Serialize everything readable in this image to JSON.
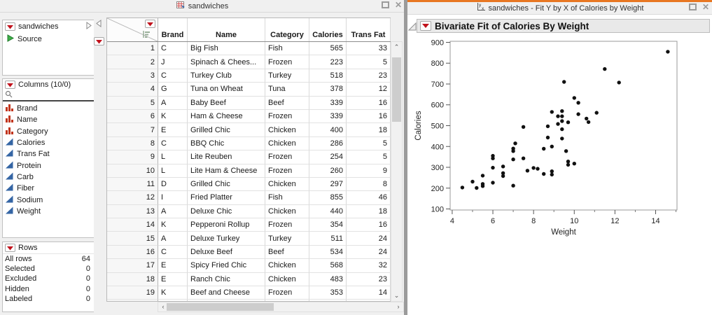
{
  "left_window": {
    "title": "sandwiches",
    "table_panel": {
      "name": "sandwiches",
      "source": "Source"
    },
    "columns_panel": {
      "title": "Columns (10/0)",
      "items": [
        {
          "label": "Brand",
          "type": "nominal"
        },
        {
          "label": "Name",
          "type": "nominal"
        },
        {
          "label": "Category",
          "type": "nominal"
        },
        {
          "label": "Calories",
          "type": "continuous"
        },
        {
          "label": "Trans Fat",
          "type": "continuous"
        },
        {
          "label": "Protein",
          "type": "continuous"
        },
        {
          "label": "Carb",
          "type": "continuous"
        },
        {
          "label": "Fiber",
          "type": "continuous"
        },
        {
          "label": "Sodium",
          "type": "continuous"
        },
        {
          "label": "Weight",
          "type": "continuous"
        }
      ]
    },
    "rows_panel": {
      "title": "Rows",
      "stats": [
        {
          "label": "All rows",
          "value": "64"
        },
        {
          "label": "Selected",
          "value": "0"
        },
        {
          "label": "Excluded",
          "value": "0"
        },
        {
          "label": "Hidden",
          "value": "0"
        },
        {
          "label": "Labeled",
          "value": "0"
        }
      ]
    },
    "table": {
      "headers": [
        "Brand",
        "Name",
        "Category",
        "Calories",
        "Trans Fat"
      ],
      "rows": [
        [
          "1",
          "C",
          "Big Fish",
          "Fish",
          "565",
          "33"
        ],
        [
          "2",
          "J",
          "Spinach & Chees...",
          "Frozen",
          "223",
          "5"
        ],
        [
          "3",
          "C",
          "Turkey Club",
          "Turkey",
          "518",
          "23"
        ],
        [
          "4",
          "G",
          "Tuna on Wheat",
          "Tuna",
          "378",
          "12"
        ],
        [
          "5",
          "A",
          "Baby Beef",
          "Beef",
          "339",
          "16"
        ],
        [
          "6",
          "K",
          "Ham & Cheese",
          "Frozen",
          "339",
          "16"
        ],
        [
          "7",
          "E",
          "Grilled Chic",
          "Chicken",
          "400",
          "18"
        ],
        [
          "8",
          "C",
          "BBQ Chic",
          "Chicken",
          "286",
          "5"
        ],
        [
          "9",
          "L",
          "Lite Reuben",
          "Frozen",
          "254",
          "5"
        ],
        [
          "10",
          "L",
          "Lite Ham & Cheese",
          "Frozen",
          "260",
          "9"
        ],
        [
          "11",
          "D",
          "Grilled Chic",
          "Chicken",
          "297",
          "8"
        ],
        [
          "12",
          "I",
          "Fried Platter",
          "Fish",
          "855",
          "46"
        ],
        [
          "13",
          "A",
          "Deluxe Chic",
          "Chicken",
          "440",
          "18"
        ],
        [
          "14",
          "K",
          "Pepperoni Rollup",
          "Frozen",
          "354",
          "16"
        ],
        [
          "15",
          "A",
          "Deluxe Turkey",
          "Turkey",
          "511",
          "24"
        ],
        [
          "16",
          "C",
          "Deluxe Beef",
          "Beef",
          "534",
          "24"
        ],
        [
          "17",
          "E",
          "Spicy Fried Chic",
          "Chicken",
          "568",
          "32"
        ],
        [
          "18",
          "E",
          "Ranch Chic",
          "Chicken",
          "483",
          "23"
        ],
        [
          "19",
          "K",
          "Beef and Cheese",
          "Frozen",
          "353",
          "14"
        ]
      ]
    }
  },
  "right_window": {
    "title": "sandwiches - Fit Y by X of Calories by Weight",
    "report_title": "Bivariate Fit of Calories By Weight"
  },
  "chart_data": {
    "type": "scatter",
    "title": "Bivariate Fit of Calories By Weight",
    "xlabel": "Weight",
    "ylabel": "Calories",
    "xlim": [
      4,
      15
    ],
    "ylim": [
      100,
      900
    ],
    "x_ticks": [
      4,
      6,
      8,
      10,
      12,
      14
    ],
    "x_minor_ticks": [
      5,
      7,
      9,
      11,
      13,
      15
    ],
    "y_ticks": [
      100,
      200,
      300,
      400,
      500,
      600,
      700,
      800,
      900
    ],
    "grid": false,
    "marker_color": "#111111",
    "points": [
      [
        4.5,
        203
      ],
      [
        5.0,
        231
      ],
      [
        5.2,
        201
      ],
      [
        5.5,
        260
      ],
      [
        5.5,
        220
      ],
      [
        5.5,
        210
      ],
      [
        6.0,
        355
      ],
      [
        6.0,
        343
      ],
      [
        6.0,
        298
      ],
      [
        6.0,
        226
      ],
      [
        6.5,
        304
      ],
      [
        6.5,
        272
      ],
      [
        6.5,
        258
      ],
      [
        7.0,
        212
      ],
      [
        7.0,
        390
      ],
      [
        7.0,
        378
      ],
      [
        7.0,
        338
      ],
      [
        7.1,
        415
      ],
      [
        7.5,
        494
      ],
      [
        7.5,
        343
      ],
      [
        7.7,
        284
      ],
      [
        8.0,
        297
      ],
      [
        8.2,
        293
      ],
      [
        8.5,
        268
      ],
      [
        8.5,
        389
      ],
      [
        8.7,
        497
      ],
      [
        8.7,
        443
      ],
      [
        8.9,
        281
      ],
      [
        8.9,
        265
      ],
      [
        8.9,
        400
      ],
      [
        8.9,
        566
      ],
      [
        9.2,
        508
      ],
      [
        9.2,
        545
      ],
      [
        9.4,
        570
      ],
      [
        9.4,
        545
      ],
      [
        9.4,
        522
      ],
      [
        9.4,
        483
      ],
      [
        9.4,
        438
      ],
      [
        9.5,
        710
      ],
      [
        9.6,
        378
      ],
      [
        9.7,
        516
      ],
      [
        9.7,
        328
      ],
      [
        9.7,
        312
      ],
      [
        10.0,
        633
      ],
      [
        10.0,
        318
      ],
      [
        10.2,
        610
      ],
      [
        10.2,
        555
      ],
      [
        10.6,
        534
      ],
      [
        10.7,
        517
      ],
      [
        11.1,
        562
      ],
      [
        11.5,
        772
      ],
      [
        12.2,
        707
      ],
      [
        14.6,
        855
      ]
    ]
  }
}
